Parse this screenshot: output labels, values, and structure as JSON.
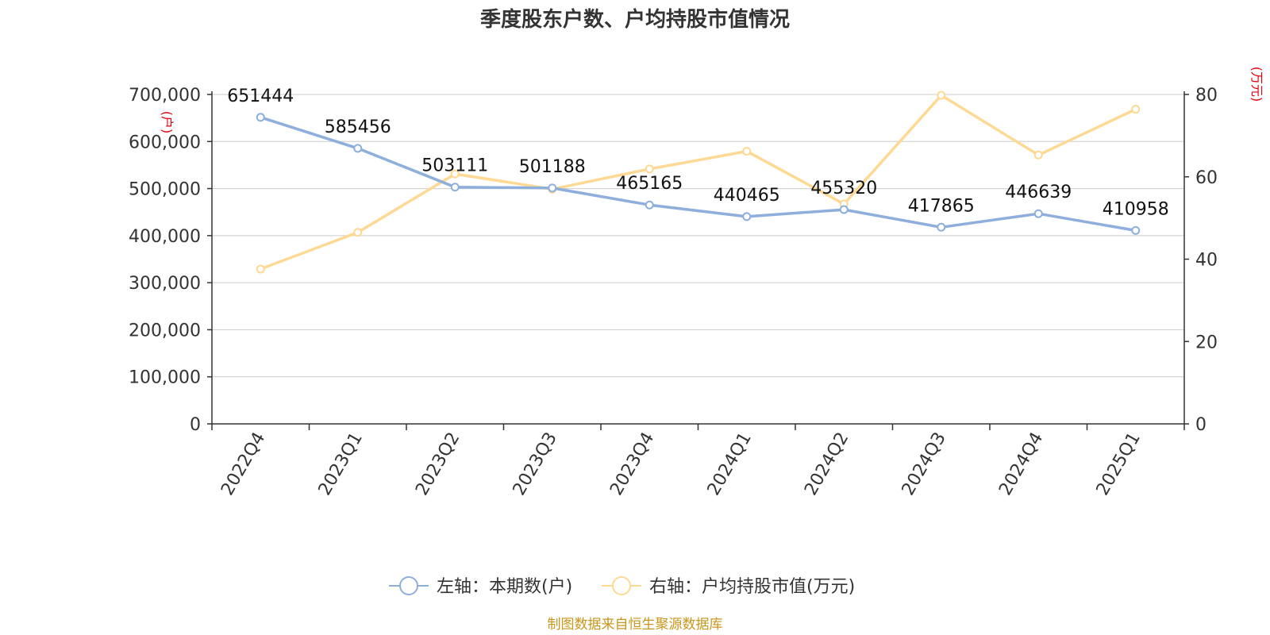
{
  "chart_data": {
    "type": "line",
    "title": "季度股东户数、户均持股市值情况",
    "categories": [
      "2022Q4",
      "2023Q1",
      "2023Q2",
      "2023Q3",
      "2023Q4",
      "2024Q1",
      "2024Q2",
      "2024Q3",
      "2024Q4",
      "2025Q1"
    ],
    "series": [
      {
        "name": "左轴：本期数(户)",
        "axis": "left",
        "color": "#8eaedb",
        "values": [
          651444,
          585456,
          503111,
          501188,
          465165,
          440465,
          455320,
          417865,
          446639,
          410958
        ],
        "labels": [
          "651444",
          "585456",
          "503111",
          "501188",
          "465165",
          "440465",
          "455320",
          "417865",
          "446639",
          "410958"
        ]
      },
      {
        "name": "右轴：户均持股市值(万元)",
        "axis": "right",
        "color": "#fdd994",
        "values": [
          37.6,
          46.5,
          60.7,
          57.0,
          61.9,
          66.2,
          53.4,
          79.8,
          65.3,
          76.4
        ]
      }
    ],
    "left_axis": {
      "unit": "(户)",
      "ylim": [
        0,
        700000
      ],
      "ticks": [
        0,
        100000,
        200000,
        300000,
        400000,
        500000,
        600000,
        700000
      ],
      "tick_labels": [
        "0",
        "100,000",
        "200,000",
        "300,000",
        "400,000",
        "500,000",
        "600,000",
        "700,000"
      ]
    },
    "right_axis": {
      "unit": "(万元)",
      "ylim": [
        0,
        80
      ],
      "ticks": [
        0,
        20,
        40,
        60,
        80
      ],
      "tick_labels": [
        "0",
        "20",
        "40",
        "60",
        "80"
      ]
    },
    "grid": true,
    "legend": "bottom"
  },
  "footer": {
    "source": "制图数据来自恒生聚源数据库"
  }
}
